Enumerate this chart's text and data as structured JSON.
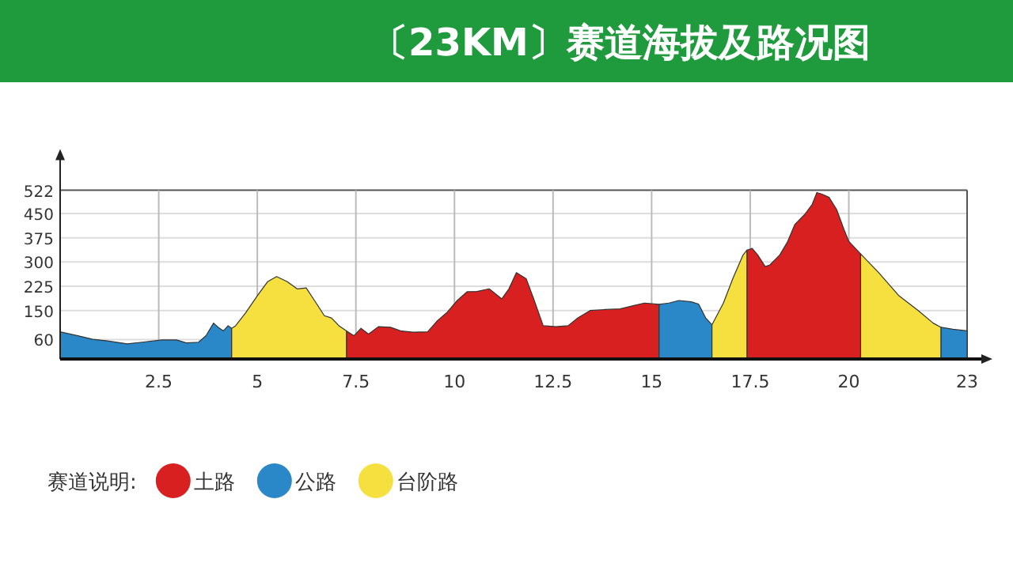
{
  "chart_data": {
    "type": "area",
    "title": "〔23KM〕赛道海拔及路况图",
    "legend_title": "赛道说明:",
    "legend": "bottom",
    "grid": true,
    "xlim": [
      0,
      23
    ],
    "ylim": [
      0,
      522
    ],
    "xticks": [
      2.5,
      5,
      7.5,
      10,
      12.5,
      15,
      17.5,
      20,
      23
    ],
    "yticks": [
      60,
      150,
      225,
      300,
      375,
      450,
      522
    ],
    "series": [
      {
        "name": "土路",
        "color": "#d7201f",
        "x": [
          7.26,
          7.45,
          7.63,
          7.82,
          8.07,
          8.38,
          8.63,
          8.95,
          9.32,
          9.57,
          9.82,
          10.07,
          10.32,
          10.57,
          10.88,
          11.2,
          11.38,
          11.57,
          11.82,
          12.0,
          12.25,
          12.57,
          12.88,
          13.13,
          13.44,
          13.82,
          14.2,
          14.57,
          14.82,
          15.19
        ],
        "values": [
          87,
          72,
          95,
          77,
          100,
          98,
          87,
          83,
          84,
          119,
          145,
          181,
          208,
          209,
          217,
          186,
          217,
          267,
          248,
          189,
          103,
          100,
          103,
          127,
          150,
          153,
          155,
          166,
          173,
          169
        ]
      },
      {
        "name": "公路",
        "color": "#2a87c8",
        "x": [
          0,
          0.45,
          0.83,
          1.2,
          1.7,
          2.08,
          2.58,
          2.95,
          3.2,
          3.51,
          3.7,
          3.89,
          4.01,
          4.14,
          4.26,
          4.35
        ],
        "values": [
          84,
          72,
          61,
          56,
          47,
          52,
          59,
          59,
          50,
          52,
          72,
          111,
          98,
          87,
          103,
          95
        ]
      },
      {
        "name": "台阶路",
        "color": "#f5e040",
        "x": [
          4.35,
          4.45,
          4.7,
          5.01,
          5.26,
          5.49,
          5.76,
          6.01,
          6.24,
          6.45,
          6.7,
          6.88,
          7.07,
          7.26
        ],
        "values": [
          95,
          103,
          142,
          197,
          239,
          255,
          239,
          217,
          220,
          181,
          134,
          127,
          103,
          87
        ]
      },
      {
        "color": "#2a87c8",
        "x": [
          15.19,
          15.44,
          15.69,
          16.0,
          16.19,
          16.37,
          16.53
        ],
        "values": [
          169,
          173,
          181,
          177,
          170,
          127,
          106
        ]
      },
      {
        "color": "#f5e040",
        "x": [
          16.53,
          16.82,
          17.07,
          17.32,
          17.42
        ],
        "values": [
          106,
          173,
          252,
          322,
          337
        ]
      },
      {
        "color": "#d7201f",
        "x": [
          17.42,
          17.55,
          17.69,
          17.88,
          18.0,
          18.25,
          18.44,
          18.63,
          18.88,
          19.07,
          19.19,
          19.32,
          19.5,
          19.69,
          19.88,
          20.0,
          20.3
        ],
        "values": [
          337,
          342,
          322,
          286,
          291,
          322,
          361,
          416,
          447,
          478,
          515,
          510,
          500,
          463,
          400,
          364,
          325
        ]
      },
      {
        "color": "#f5e040",
        "x": [
          20.3,
          20.76,
          21.26,
          21.76,
          22.14,
          22.34
        ],
        "values": [
          325,
          267,
          197,
          150,
          111,
          98
        ]
      },
      {
        "color": "#2a87c8",
        "x": [
          22.34,
          22.64,
          23
        ],
        "values": [
          98,
          92,
          87
        ]
      }
    ]
  }
}
